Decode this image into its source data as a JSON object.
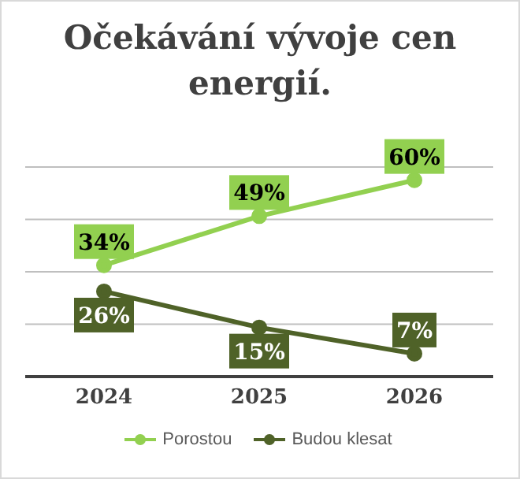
{
  "chart_data": {
    "type": "line",
    "title": "Očekávání vývoje cen energií.",
    "categories": [
      "2024",
      "2025",
      "2026"
    ],
    "series": [
      {
        "name": "Porostou",
        "color": "#92d050",
        "values": [
          34,
          49,
          60
        ],
        "value_labels": [
          "34%",
          "49%",
          "60%"
        ]
      },
      {
        "name": "Budou klesat",
        "color": "#4f6228",
        "values": [
          26,
          15,
          7
        ],
        "value_labels": [
          "26%",
          "15%",
          "7%"
        ]
      }
    ],
    "tick_labels": "x",
    "grid": "y",
    "legend": "bottom",
    "line_style": "solid",
    "marker": "circle"
  }
}
